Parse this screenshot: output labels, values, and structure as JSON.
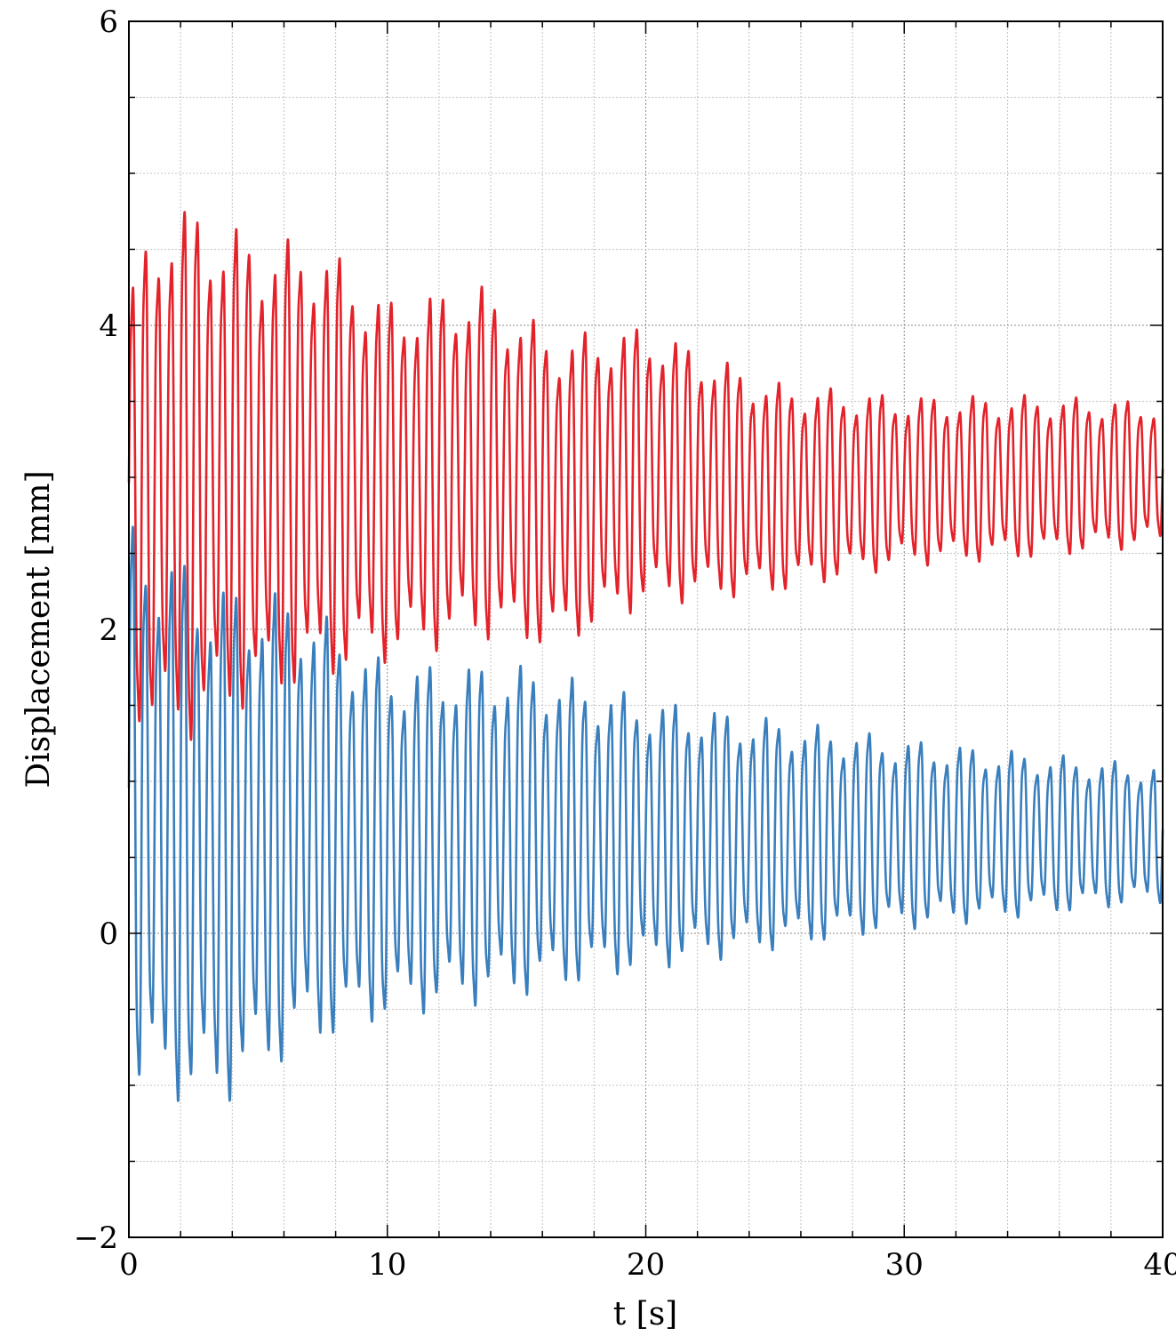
{
  "chart_data": {
    "type": "line",
    "xlabel": "t [s]",
    "ylabel": "Displacement [mm]",
    "xlim": [
      0,
      40
    ],
    "ylim": [
      -2,
      6
    ],
    "xticks": [
      0,
      10,
      20,
      30,
      40
    ],
    "xtick_labels": [
      "0",
      "10",
      "20",
      "30",
      "40"
    ],
    "x_minor_step": 2,
    "yticks": [
      -2,
      0,
      2,
      4,
      6
    ],
    "ytick_labels": [
      "−2",
      "0",
      "2",
      "4",
      "6"
    ],
    "y_minor_step": 0.5,
    "grid": true,
    "legend": "none",
    "series": [
      {
        "color": "#e3222a",
        "oscillation_period_s": 0.5,
        "description_points": [
          {
            "t": 0,
            "upper": 4.45,
            "lower": 1.3
          },
          {
            "t": 1.6,
            "upper": 5.05,
            "lower": 1.0
          },
          {
            "t": 5,
            "upper": 4.75,
            "lower": 1.35
          },
          {
            "t": 7.5,
            "upper": 4.7,
            "lower": 1.5
          },
          {
            "t": 10,
            "upper": 4.3,
            "lower": 1.65
          },
          {
            "t": 13.6,
            "upper": 4.4,
            "lower": 1.8
          },
          {
            "t": 16.5,
            "upper": 4.05,
            "lower": 1.75
          },
          {
            "t": 20,
            "upper": 4.1,
            "lower": 2.05
          },
          {
            "t": 25,
            "upper": 3.7,
            "lower": 2.15
          },
          {
            "t": 30,
            "upper": 3.6,
            "lower": 2.35
          },
          {
            "t": 35,
            "upper": 3.6,
            "lower": 2.4
          },
          {
            "t": 40,
            "upper": 3.55,
            "lower": 2.5
          }
        ]
      },
      {
        "color": "#3a7fbd",
        "oscillation_period_s": 0.5,
        "description_points": [
          {
            "t": 0,
            "upper": 2.9,
            "lower": -1.25
          },
          {
            "t": 3.4,
            "upper": 2.5,
            "lower": -1.35
          },
          {
            "t": 6.5,
            "upper": 2.4,
            "lower": -0.95
          },
          {
            "t": 10,
            "upper": 1.9,
            "lower": -0.7
          },
          {
            "t": 15,
            "upper": 1.9,
            "lower": -0.55
          },
          {
            "t": 20,
            "upper": 1.65,
            "lower": -0.35
          },
          {
            "t": 25,
            "upper": 1.5,
            "lower": -0.2
          },
          {
            "t": 30,
            "upper": 1.35,
            "lower": -0.05
          },
          {
            "t": 35,
            "upper": 1.25,
            "lower": 0.05
          },
          {
            "t": 40,
            "upper": 1.15,
            "lower": 0.15
          }
        ]
      }
    ]
  }
}
